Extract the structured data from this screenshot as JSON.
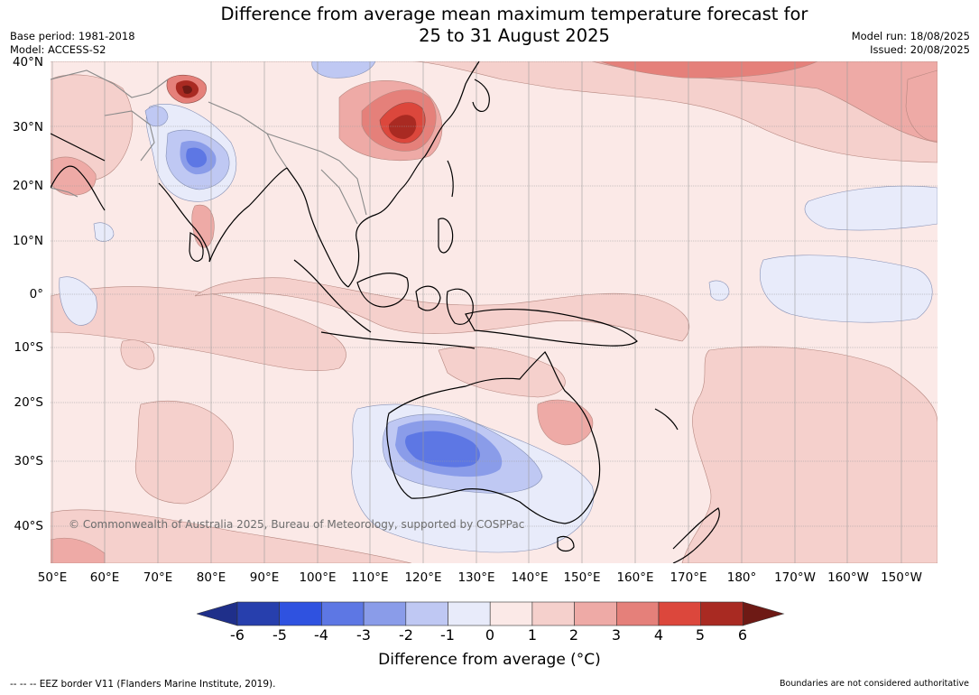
{
  "header": {
    "title_line1": "Difference from average mean maximum temperature forecast for",
    "title_line2": "25 to 31 August 2025",
    "base_period": "Base period: 1981-2018",
    "model": "Model: ACCESS-S2",
    "model_run": "Model run: 18/08/2025",
    "issued": "Issued: 20/08/2025"
  },
  "map": {
    "copyright": "© Commonwealth of Australia 2025, Bureau of Meteorology, supported by COSPPac",
    "lat_labels": [
      "40°N",
      "30°N",
      "20°N",
      "10°N",
      "0°",
      "10°S",
      "20°S",
      "30°S",
      "40°S"
    ],
    "lon_labels": [
      "50°E",
      "60°E",
      "70°E",
      "80°E",
      "90°E",
      "100°E",
      "110°E",
      "120°E",
      "130°E",
      "140°E",
      "150°E",
      "160°E",
      "170°E",
      "180°",
      "170°W",
      "160°W",
      "150°W"
    ],
    "colors": {
      "land_outline": "#000000",
      "border": "#8a8a8a",
      "gridline": "#9a9a9a",
      "background_anomaly": "#fbe9e7"
    }
  },
  "colorbar": {
    "ticks": [
      "-6",
      "-5",
      "-4",
      "-3",
      "-2",
      "-1",
      "0",
      "1",
      "2",
      "3",
      "4",
      "5",
      "6"
    ],
    "colors": [
      "#1f2f8a",
      "#273fad",
      "#2f52e0",
      "#5d77e4",
      "#8a9ce9",
      "#bfc8f3",
      "#e8ebfa",
      "#fbe9e7",
      "#f5d0cc",
      "#eeaaa6",
      "#e5807a",
      "#dc473c",
      "#a92a22",
      "#6e1a15"
    ],
    "title": "Difference from average (°C)"
  },
  "footer": {
    "eez_note": "-- -- -- EEZ border V11 (Flanders Marine Institute, 2019).",
    "disclaimer": "Boundaries are not considered authoritative"
  }
}
